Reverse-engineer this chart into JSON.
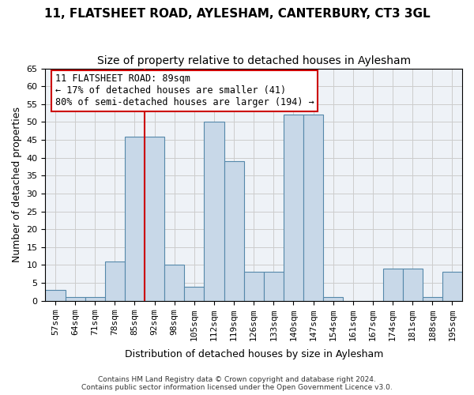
{
  "title1": "11, FLATSHEET ROAD, AYLESHAM, CANTERBURY, CT3 3GL",
  "title2": "Size of property relative to detached houses in Aylesham",
  "xlabel": "Distribution of detached houses by size in Aylesham",
  "ylabel": "Number of detached properties",
  "footer1": "Contains HM Land Registry data © Crown copyright and database right 2024.",
  "footer2": "Contains public sector information licensed under the Open Government Licence v3.0.",
  "annotation_line1": "11 FLATSHEET ROAD: 89sqm",
  "annotation_line2": "← 17% of detached houses are smaller (41)",
  "annotation_line3": "80% of semi-detached houses are larger (194) →",
  "categories": [
    "57sqm",
    "64sqm",
    "71sqm",
    "78sqm",
    "85sqm",
    "92sqm",
    "98sqm",
    "105sqm",
    "112sqm",
    "119sqm",
    "126sqm",
    "133sqm",
    "140sqm",
    "147sqm",
    "154sqm",
    "161sqm",
    "167sqm",
    "174sqm",
    "181sqm",
    "188sqm",
    "195sqm"
  ],
  "values": [
    3,
    1,
    1,
    11,
    46,
    46,
    10,
    4,
    50,
    39,
    8,
    8,
    52,
    52,
    1,
    0,
    0,
    9,
    9,
    1,
    8
  ],
  "bar_color": "#c8d8e8",
  "bar_edge_color": "#5588aa",
  "vline_color": "#cc0000",
  "vline_x": 4.5,
  "ylim": [
    0,
    65
  ],
  "yticks": [
    0,
    5,
    10,
    15,
    20,
    25,
    30,
    35,
    40,
    45,
    50,
    55,
    60,
    65
  ],
  "grid_color": "#cccccc",
  "bg_color": "#eef2f7",
  "annotation_box_color": "#cc0000",
  "title_fontsize": 11,
  "subtitle_fontsize": 10,
  "axis_label_fontsize": 9,
  "tick_fontsize": 8,
  "annotation_fontsize": 8.5
}
